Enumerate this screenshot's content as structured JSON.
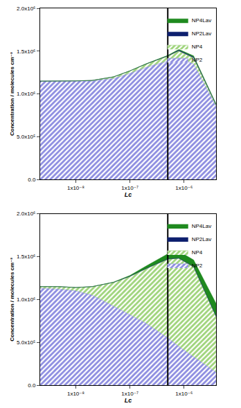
{
  "chart_data": [
    {
      "type": "area",
      "stacked": true,
      "log": "x",
      "legend": "upper right",
      "xlabel": "Lc",
      "ylabel": "Concentration / molecules cm⁻³",
      "x": [
        2.2e-09,
        5e-09,
        1e-08,
        2e-08,
        5e-08,
        1e-07,
        2e-07,
        5e-07,
        8e-07,
        1.5e-06,
        3.9e-06
      ],
      "xlim": [
        2.2e-09,
        3.9e-06
      ],
      "xticks": [
        {
          "value": 1e-08,
          "label": "1x10⁻⁸"
        },
        {
          "value": 1e-07,
          "label": "1x10⁻⁷"
        },
        {
          "value": 1e-06,
          "label": "1x10⁻⁶"
        }
      ],
      "ylim": [
        0,
        2000000
      ],
      "yticks": [
        {
          "value": 0,
          "label": "0.0"
        },
        {
          "value": 500000,
          "label": "5.0x10⁵"
        },
        {
          "value": 1000000,
          "label": "1.0x10⁶"
        },
        {
          "value": 1500000,
          "label": "1.5x10⁶"
        },
        {
          "value": 2000000,
          "label": "2.0x10⁶"
        }
      ],
      "vline_x": 5e-07,
      "series": [
        {
          "name": "NP2",
          "color": "#8c8ce0",
          "marker": "hatch",
          "values": [
            1150000,
            1150000,
            1150000,
            1150000,
            1180000,
            1240000,
            1310000,
            1380000,
            1420000,
            1350000,
            850000
          ]
        },
        {
          "name": "NP4",
          "color": "#9ed47a",
          "marker": "hatch",
          "values": [
            0,
            0,
            3000,
            8000,
            20000,
            30000,
            40000,
            60000,
            80000,
            70000,
            20000
          ]
        },
        {
          "name": "NP2Lav",
          "color": "#0d1f6e",
          "marker": "solid",
          "values": [
            0,
            0,
            0,
            0,
            0,
            0,
            1000,
            5000,
            10000,
            10000,
            5000
          ]
        },
        {
          "name": "NP4Lav",
          "color": "#1f8a1f",
          "marker": "solid",
          "values": [
            0,
            0,
            0,
            0,
            0,
            0,
            2000,
            5000,
            10000,
            15000,
            8000
          ]
        }
      ]
    },
    {
      "type": "area",
      "stacked": true,
      "log": "x",
      "legend": "upper right",
      "xlabel": "Lc",
      "ylabel": "Concentration / molecules cm⁻³",
      "x": [
        2.2e-09,
        5e-09,
        1e-08,
        2e-08,
        5e-08,
        1e-07,
        2e-07,
        5e-07,
        8e-07,
        1.5e-06,
        3.9e-06
      ],
      "xlim": [
        2.2e-09,
        3.9e-06
      ],
      "xticks": [
        {
          "value": 1e-08,
          "label": "1x10⁻⁸"
        },
        {
          "value": 1e-07,
          "label": "1x10⁻⁷"
        },
        {
          "value": 1e-06,
          "label": "1x10⁻⁶"
        }
      ],
      "ylim": [
        0,
        2000000
      ],
      "yticks": [
        {
          "value": 0,
          "label": "0.0"
        },
        {
          "value": 500000,
          "label": "5.0x10⁵"
        },
        {
          "value": 1000000,
          "label": "1.0x10⁶"
        },
        {
          "value": 1500000,
          "label": "1.5x10⁶"
        },
        {
          "value": 2000000,
          "label": "2.0x10⁶"
        }
      ],
      "vline_x": 5e-07,
      "series": [
        {
          "name": "NP2",
          "color": "#8c8ce0",
          "marker": "hatch",
          "values": [
            1130000,
            1120000,
            1100000,
            1050000,
            920000,
            820000,
            720000,
            550000,
            450000,
            330000,
            150000
          ]
        },
        {
          "name": "NP4",
          "color": "#9ed47a",
          "marker": "hatch",
          "values": [
            20000,
            30000,
            40000,
            100000,
            280000,
            450000,
            640000,
            920000,
            1030000,
            1050000,
            650000
          ]
        },
        {
          "name": "NP2Lav",
          "color": "#0d1f6e",
          "marker": "solid",
          "values": [
            0,
            0,
            0,
            0,
            0,
            0,
            1000,
            2000,
            2000,
            2000,
            2000
          ]
        },
        {
          "name": "NP4Lav",
          "color": "#1f8a1f",
          "marker": "solid",
          "values": [
            0,
            0,
            0,
            0,
            3000,
            10000,
            30000,
            60000,
            80000,
            80000,
            150000
          ]
        }
      ]
    }
  ]
}
